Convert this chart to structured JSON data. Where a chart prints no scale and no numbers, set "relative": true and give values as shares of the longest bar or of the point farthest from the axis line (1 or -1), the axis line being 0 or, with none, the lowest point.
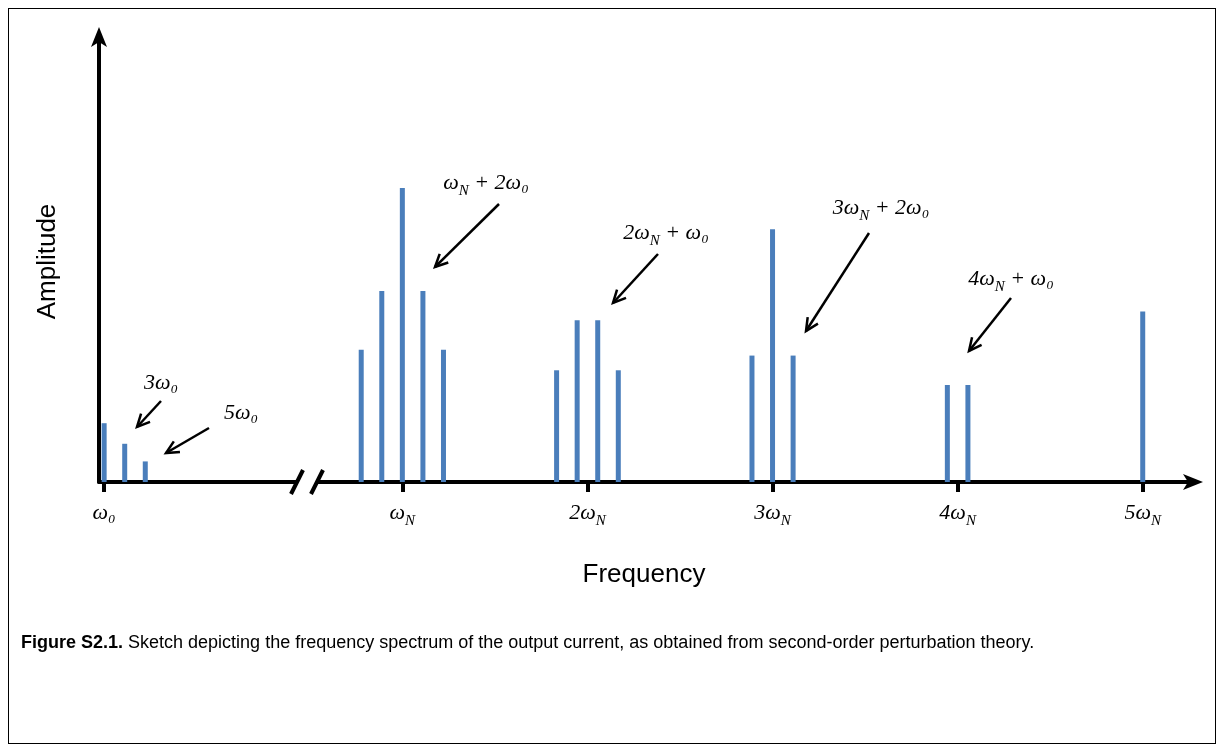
{
  "chart_data": {
    "type": "bar",
    "relative": true,
    "xlabel": "Frequency",
    "ylabel": "Amplitude",
    "categories": [
      "ω₀",
      null,
      null,
      null,
      null,
      null,
      null,
      null,
      null,
      null,
      null,
      null,
      null,
      null,
      null,
      null,
      null,
      null,
      null,
      null,
      null,
      null,
      null,
      null,
      null,
      null,
      null,
      null,
      null,
      "ω$_{N}$",
      null,
      null,
      null,
      null,
      null,
      null,
      null,
      null,
      null,
      null,
      null,
      null,
      null,
      null,
      null,
      null,
      null,
      "2ω$_{N}$",
      null,
      null,
      null,
      null,
      null,
      null,
      null,
      null,
      null,
      null,
      null,
      null,
      null,
      null,
      null,
      null,
      null,
      "3ω$_{N}$",
      null,
      null,
      null,
      null,
      null,
      null,
      null,
      null,
      null,
      null,
      null,
      null,
      null,
      null,
      null,
      null,
      null,
      "4ω$_{N}$",
      null,
      null,
      null,
      null,
      null,
      null,
      null,
      null,
      null,
      null,
      null,
      null,
      null,
      null,
      null,
      null,
      null,
      "5ω$_{N}$",
      null,
      null,
      null,
      null
    ],
    "values": [
      0.2,
      null,
      0.13,
      null,
      0.07,
      null,
      null,
      null,
      null,
      null,
      null,
      null,
      null,
      null,
      null,
      null,
      null,
      null,
      null,
      null,
      null,
      null,
      null,
      null,
      null,
      0.45,
      null,
      0.65,
      null,
      1,
      null,
      0.65,
      null,
      0.45,
      null,
      null,
      null,
      null,
      null,
      null,
      null,
      null,
      null,
      null,
      0.38,
      null,
      0.55,
      null,
      0.55,
      null,
      0.38,
      null,
      null,
      null,
      null,
      null,
      null,
      null,
      null,
      null,
      null,
      null,
      null,
      0.43,
      null,
      0.86,
      null,
      0.43,
      null,
      null,
      null,
      null,
      null,
      null,
      null,
      null,
      null,
      null,
      null,
      null,
      null,
      null,
      0.33,
      null,
      0.33,
      null,
      null,
      null,
      null,
      null,
      null,
      null,
      null,
      null,
      null,
      null,
      null,
      null,
      null,
      null,
      null,
      0.58,
      null,
      null,
      null,
      null
    ],
    "color": "#4a7ebb",
    "grid": false,
    "annotations": [
      "3ω₀",
      "5ω₀",
      "ω$_{N}$ + 2ω₀",
      "2ω$_{N}$ + ω₀",
      "3ω$_{N}$ + 2ω₀",
      "4ω$_{N}$ + ω₀",
      "Figure S2.1.  Sketch depicting the frequency spectrum of the output current, as obtained from second-order perturbation theory."
    ]
  }
}
